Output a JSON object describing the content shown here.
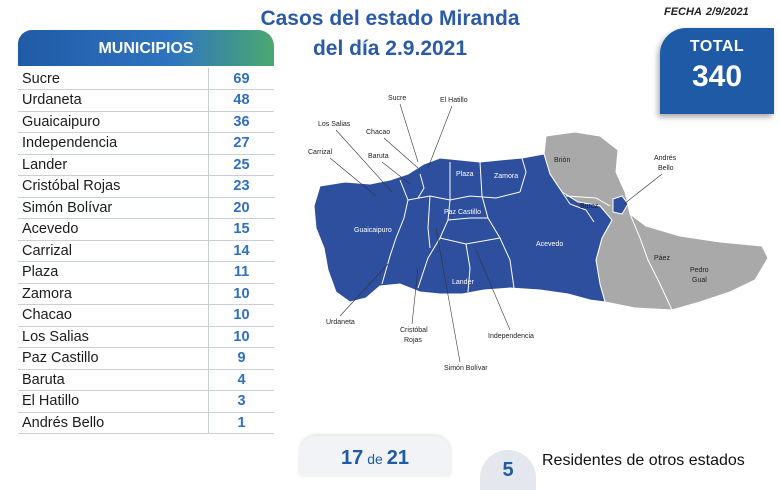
{
  "header": {
    "title_line1": "Casos del estado Miranda",
    "title_line2": "del día 2.9.2021",
    "fecha_label": "FECHA",
    "fecha_value": "2/9/2021"
  },
  "total": {
    "label": "TOTAL",
    "value": "340"
  },
  "municipios": {
    "header": "MUNICIPIOS",
    "rows": [
      {
        "name": "Sucre",
        "value": "69"
      },
      {
        "name": "Urdaneta",
        "value": "48"
      },
      {
        "name": "Guaicaipuro",
        "value": "36"
      },
      {
        "name": "Independencia",
        "value": "27"
      },
      {
        "name": "Lander",
        "value": "25"
      },
      {
        "name": "Cristóbal Rojas",
        "value": "23"
      },
      {
        "name": "Simón Bolívar",
        "value": "20"
      },
      {
        "name": "Acevedo",
        "value": "15"
      },
      {
        "name": "Carrizal",
        "value": "14"
      },
      {
        "name": "Plaza",
        "value": "11"
      },
      {
        "name": "Zamora",
        "value": "10"
      },
      {
        "name": "Chacao",
        "value": "10"
      },
      {
        "name": "Los Salias",
        "value": "10"
      },
      {
        "name": "Paz Castillo",
        "value": "9"
      },
      {
        "name": "Baruta",
        "value": "4"
      },
      {
        "name": "El Hatillo",
        "value": "3"
      },
      {
        "name": "Andrés Bello",
        "value": "1"
      }
    ]
  },
  "map": {
    "colors": {
      "affected": "#2d4f9e",
      "unaffected": "#a9a9a9",
      "border": "#ffffff"
    },
    "labels": {
      "sucre": "Sucre",
      "el_hatillo": "El Hatillo",
      "los_salias": "Los Salias",
      "chacao": "Chacao",
      "carrizal": "Carrizal",
      "baruta": "Baruta",
      "plaza": "Plaza",
      "zamora": "Zamora",
      "brion": "Brión",
      "andres_bello_1": "Andrés",
      "andres_bello_2": "Bello",
      "buroz": "Buroz",
      "guaicaipuro": "Guaicaipuro",
      "paz_castillo": "Paz Castillo",
      "acevedo": "Acevedo",
      "paez": "Páez",
      "pedro_gual_1": "Pedro",
      "pedro_gual_2": "Gual",
      "lander": "Lander",
      "urdaneta": "Urdaneta",
      "cristobal_rojas_1": "Cristóbal",
      "cristobal_rojas_2": "Rojas",
      "independencia": "Independencia",
      "simon_bolivar": "Simón Bolívar"
    }
  },
  "bottom": {
    "count_a": "17",
    "count_de": "de",
    "count_b": "21",
    "badge": "5",
    "residentes": "Residentes de otros estados"
  }
}
